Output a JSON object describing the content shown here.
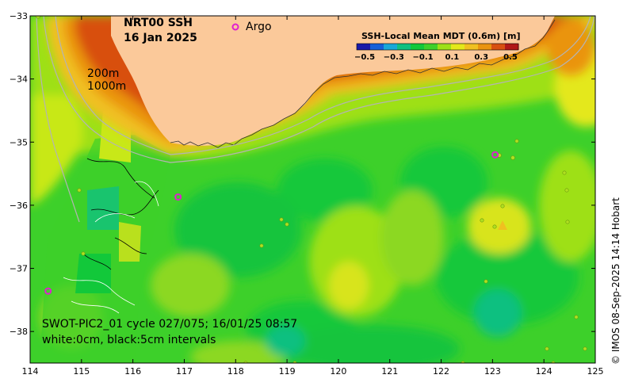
{
  "title": {
    "line1": "NRT00 SSH",
    "line2": "16 Jan 2025"
  },
  "legend_argo": {
    "marker": "o",
    "label": "Argo"
  },
  "colorbar": {
    "title": "SSH-Local Mean MDT (0.6m) [m]",
    "ticks": [
      "−0.5",
      "−0.3",
      "−0.1",
      "0.1",
      "0.3",
      "0.5"
    ],
    "colors": [
      "#1a1aa8",
      "#1560d8",
      "#18a8d8",
      "#10c080",
      "#12c83a",
      "#3fd02a",
      "#9ee018",
      "#e4e81a",
      "#f0c020",
      "#ea9410",
      "#d85010",
      "#b01818"
    ]
  },
  "isobaths": {
    "line1": "200m",
    "line2": "1000m"
  },
  "swot_note": {
    "line1": "SWOT-PIC2_01 cycle 027/075; 16/01/25 08:57",
    "line2": "white:0cm, black:5cm intervals"
  },
  "credit": "© IMOS 08-Sep-2025 14:14 Hobart",
  "axes": {
    "x_ticks": [
      "114",
      "115",
      "116",
      "117",
      "118",
      "119",
      "120",
      "121",
      "122",
      "123",
      "124",
      "125"
    ],
    "y_ticks": [
      "−33",
      "−34",
      "−35",
      "−36",
      "−37",
      "−38"
    ],
    "xlim": [
      114,
      125
    ],
    "ylim": [
      -38.5,
      -33
    ]
  },
  "argo_floats": [
    {
      "lon": 116.88,
      "lat": -35.87
    },
    {
      "lon": 114.35,
      "lat": -37.36
    },
    {
      "lon": 123.05,
      "lat": -35.2
    }
  ],
  "colors": {
    "land": "#fbc99a",
    "argo": "#e020d0",
    "isobath": "#b4b4b4"
  }
}
